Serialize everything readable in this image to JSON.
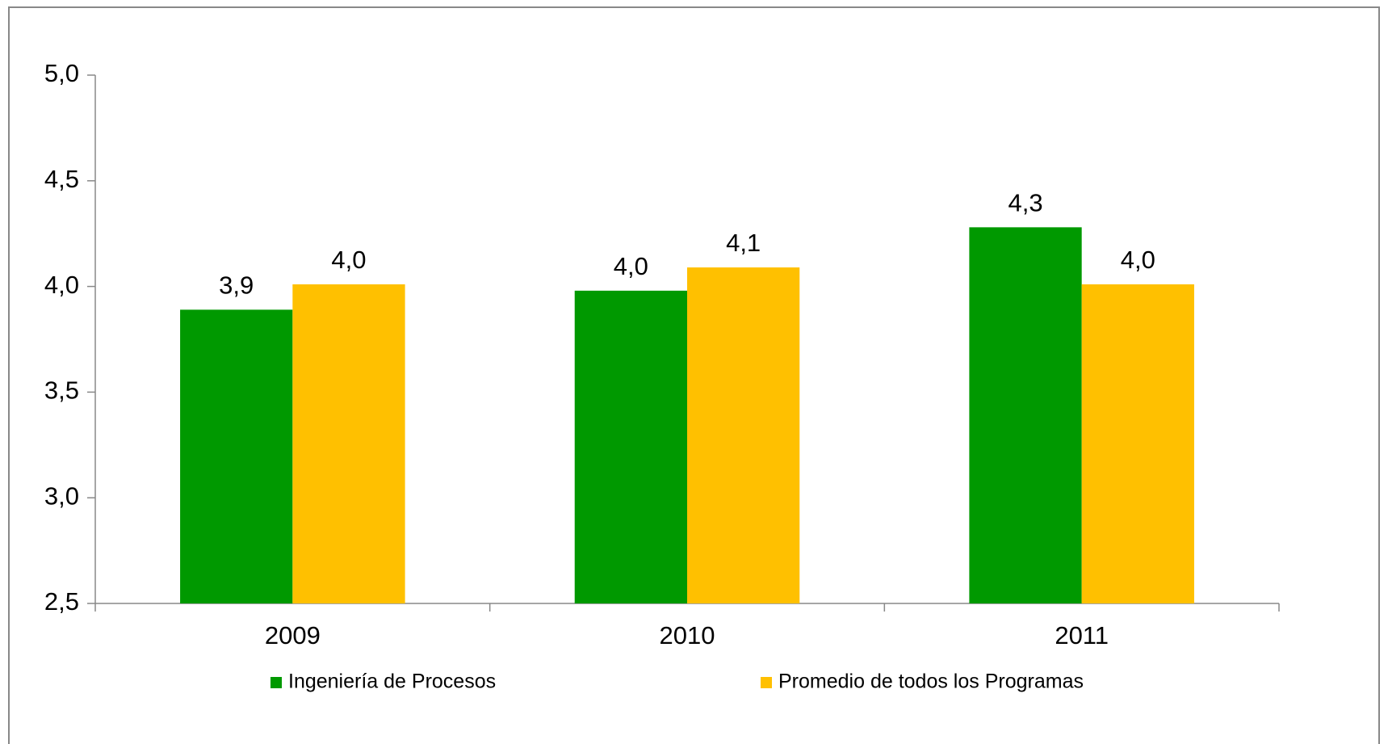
{
  "chart_data": {
    "type": "bar",
    "categories": [
      "2009",
      "2010",
      "2011"
    ],
    "series": [
      {
        "name": "Ingeniería de Procesos",
        "color": "#009900",
        "values": [
          3.89,
          3.98,
          4.28
        ],
        "value_labels": [
          "3,9",
          "4,0",
          "4,3"
        ]
      },
      {
        "name": "Promedio de todos los Programas",
        "color": "#ffc000",
        "values": [
          4.01,
          4.09,
          4.01
        ],
        "value_labels": [
          "4,0",
          "4,1",
          "4,0"
        ]
      }
    ],
    "ylim": [
      2.5,
      5.0
    ],
    "yticks": [
      {
        "value": 2.5,
        "label": "2,5"
      },
      {
        "value": 3.0,
        "label": "3,0"
      },
      {
        "value": 3.5,
        "label": "3,5"
      },
      {
        "value": 4.0,
        "label": "4,0"
      },
      {
        "value": 4.5,
        "label": "4,5"
      },
      {
        "value": 5.0,
        "label": "5,0"
      }
    ],
    "grid": false,
    "legend": "bottom"
  }
}
